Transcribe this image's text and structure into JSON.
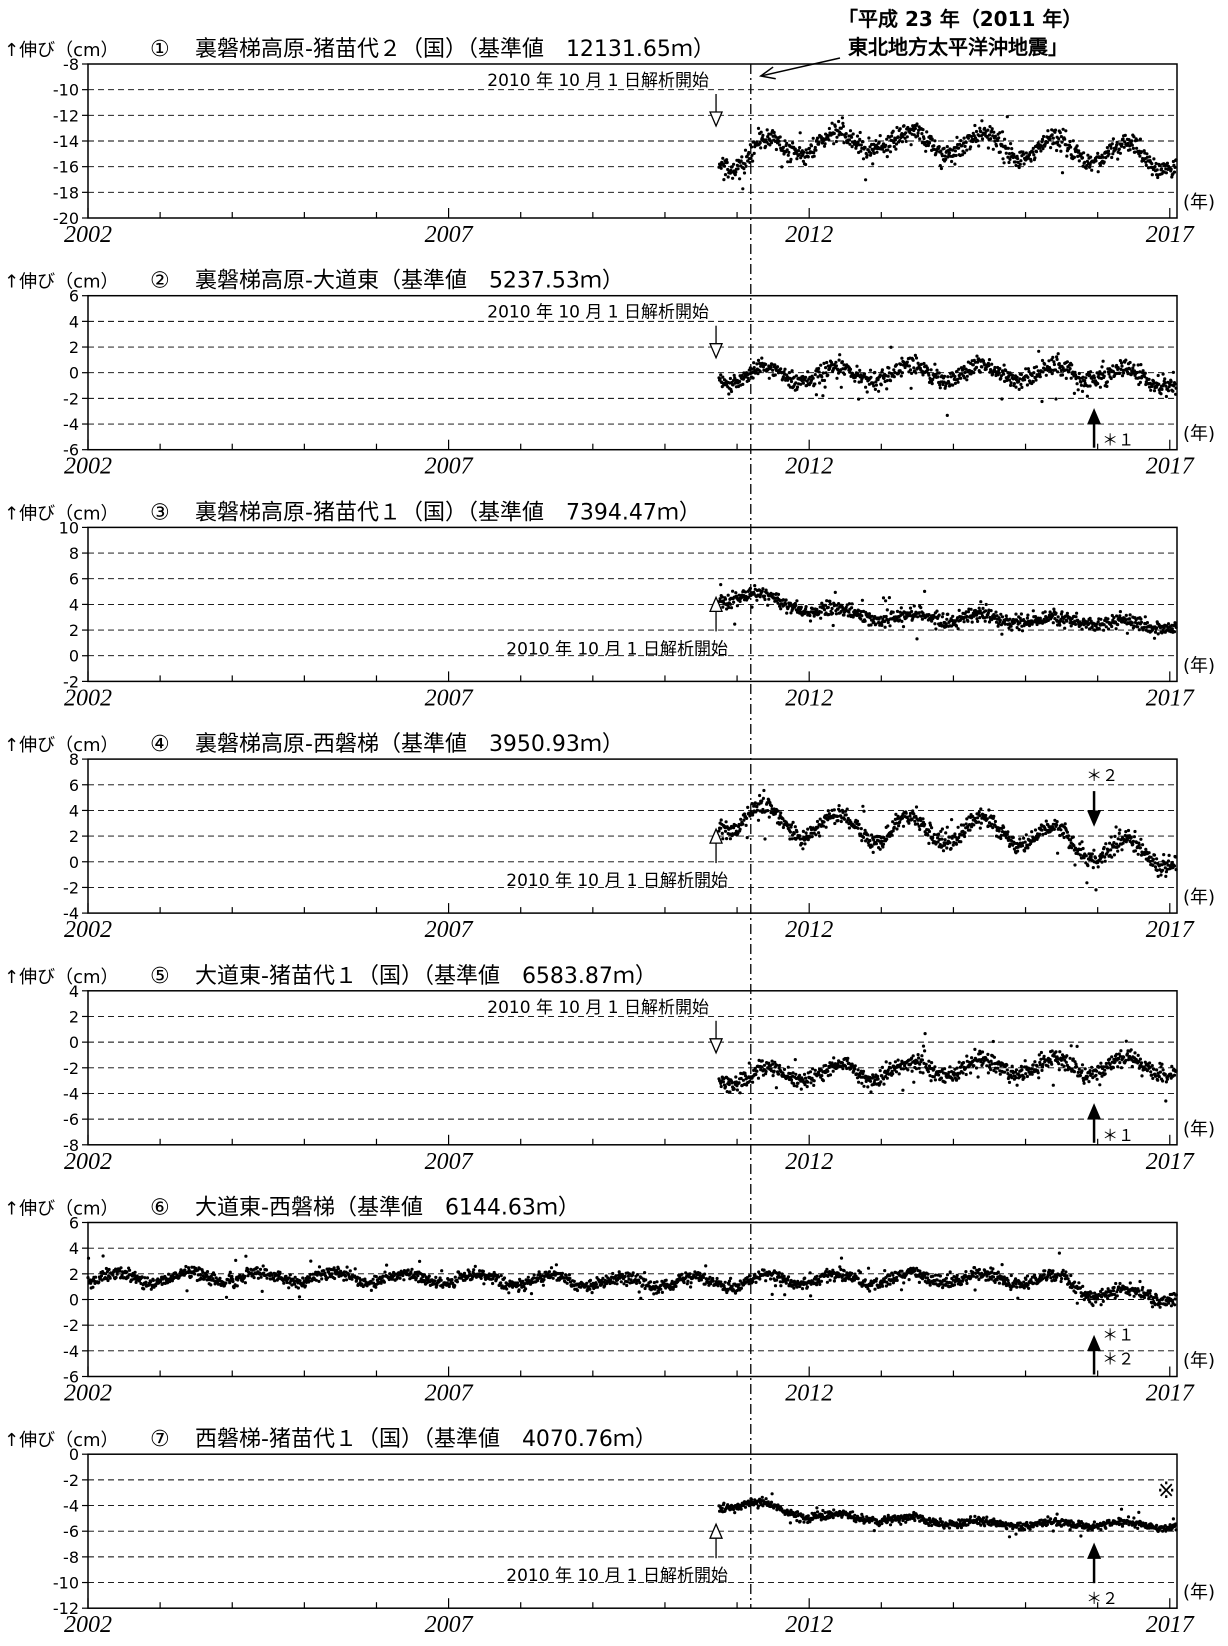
{
  "earthquake_label": {
    "line1": "「平成 23 年（2011 年）",
    "line2": "東北地方太平洋沖地震」",
    "year": 2011.19
  },
  "common": {
    "y_unit": "↑伸び（cm）",
    "x_unit": "(年)",
    "analysis_start_text": "2010 年 10 月 1 日解析開始",
    "analysis_start_year": 2010.75,
    "x_ticks": [
      "2002",
      "2007",
      "2012",
      "2017"
    ],
    "xlim": [
      2002,
      2017.1
    ]
  },
  "chart_data": [
    {
      "type": "scatter",
      "number": "①",
      "title": "裏磐梯高原-猪苗代２（国）（基準値　12131.65ｍ）",
      "ylim": [
        -20,
        -8
      ],
      "y_ticks": [
        "-8",
        "-10",
        "-12",
        "-14",
        "-16",
        "-18",
        "-20"
      ],
      "data_start": 2010.75,
      "levels": [
        [
          2010.75,
          -15.2
        ],
        [
          2011.1,
          -15.5
        ],
        [
          2011.3,
          -14.7
        ],
        [
          2012.0,
          -14.2
        ],
        [
          2013.0,
          -14.0
        ],
        [
          2014.0,
          -14.2
        ],
        [
          2015.0,
          -14.5
        ],
        [
          2016.0,
          -14.8
        ],
        [
          2017.1,
          -15.5
        ]
      ],
      "seasonal_amplitude": 0.9,
      "noise": 0.6,
      "analysis_arrow": {
        "dir": "down",
        "label_pos": "above"
      },
      "markers": []
    },
    {
      "type": "scatter",
      "number": "②",
      "title": "裏磐梯高原-大道東（基準値　5237.53ｍ）",
      "ylim": [
        -6,
        6
      ],
      "y_ticks": [
        "6",
        "4",
        "2",
        "0",
        "-2",
        "-4",
        "-6"
      ],
      "data_start": 2010.75,
      "levels": [
        [
          2010.75,
          -0.2
        ],
        [
          2012.0,
          -0.1
        ],
        [
          2014.0,
          0.0
        ],
        [
          2016.0,
          0.0
        ],
        [
          2017.1,
          -0.6
        ]
      ],
      "seasonal_amplitude": 0.6,
      "noise": 0.5,
      "analysis_arrow": {
        "dir": "down",
        "label_pos": "above"
      },
      "markers": [
        {
          "label": "＊１",
          "x": 2015.95,
          "dir": "up"
        }
      ]
    },
    {
      "type": "scatter",
      "number": "③",
      "title": "裏磐梯高原-猪苗代１（国）（基準値　7394.47ｍ）",
      "ylim": [
        -2,
        10
      ],
      "y_ticks": [
        "10",
        "8",
        "6",
        "4",
        "2",
        "0",
        "-2"
      ],
      "data_start": 2010.75,
      "levels": [
        [
          2010.75,
          4.4
        ],
        [
          2011.2,
          4.8
        ],
        [
          2012.0,
          3.6
        ],
        [
          2013.0,
          3.0
        ],
        [
          2014.0,
          3.0
        ],
        [
          2015.0,
          2.8
        ],
        [
          2016.0,
          2.6
        ],
        [
          2017.1,
          2.3
        ]
      ],
      "seasonal_amplitude": 0.3,
      "noise": 0.4,
      "analysis_arrow": {
        "dir": "up",
        "label_pos": "below"
      },
      "markers": []
    },
    {
      "type": "scatter",
      "number": "④",
      "title": "裏磐梯高原-西磐梯（基準値　3950.93ｍ）",
      "ylim": [
        -4,
        8
      ],
      "y_ticks": [
        "8",
        "6",
        "4",
        "2",
        "0",
        "-2",
        "-4"
      ],
      "data_start": 2010.75,
      "levels": [
        [
          2010.75,
          3.2
        ],
        [
          2011.2,
          3.6
        ],
        [
          2012.0,
          2.8
        ],
        [
          2013.0,
          2.5
        ],
        [
          2014.0,
          2.5
        ],
        [
          2015.0,
          2.2
        ],
        [
          2016.0,
          1.0
        ],
        [
          2017.1,
          0.4
        ]
      ],
      "seasonal_amplitude": 1.0,
      "noise": 0.5,
      "analysis_arrow": {
        "dir": "up",
        "label_pos": "below"
      },
      "markers": [
        {
          "label": "＊２",
          "x": 2015.95,
          "dir": "down"
        }
      ]
    },
    {
      "type": "scatter",
      "number": "⑤",
      "title": "大道東-猪苗代１（国）（基準値　6583.87ｍ）",
      "ylim": [
        -8,
        4
      ],
      "y_ticks": [
        "4",
        "2",
        "0",
        "-2",
        "-4",
        "-6",
        "-8"
      ],
      "data_start": 2010.75,
      "levels": [
        [
          2010.75,
          -2.7
        ],
        [
          2012.0,
          -2.4
        ],
        [
          2014.0,
          -2.0
        ],
        [
          2016.0,
          -1.9
        ],
        [
          2017.1,
          -2.0
        ]
      ],
      "seasonal_amplitude": 0.6,
      "noise": 0.5,
      "analysis_arrow": {
        "dir": "down",
        "label_pos": "above"
      },
      "markers": [
        {
          "label": "＊１",
          "x": 2015.95,
          "dir": "up"
        }
      ]
    },
    {
      "type": "scatter",
      "number": "⑥",
      "title": "大道東-西磐梯（基準値　6144.63ｍ）",
      "ylim": [
        -6,
        6
      ],
      "y_ticks": [
        "6",
        "4",
        "2",
        "0",
        "-2",
        "-4",
        "-6"
      ],
      "data_start": 2002.0,
      "levels": [
        [
          2002.0,
          1.6
        ],
        [
          2004.0,
          1.8
        ],
        [
          2007.0,
          1.6
        ],
        [
          2010.0,
          1.3
        ],
        [
          2012.0,
          1.6
        ],
        [
          2014.0,
          1.7
        ],
        [
          2015.5,
          1.5
        ],
        [
          2016.0,
          0.5
        ],
        [
          2017.1,
          0.3
        ]
      ],
      "seasonal_amplitude": 0.4,
      "noise": 0.35,
      "analysis_arrow": null,
      "markers": [
        {
          "label": "＊１",
          "x": 2015.95,
          "dir": "up"
        },
        {
          "label": "＊２",
          "x": 2015.95,
          "dir": "up2"
        }
      ]
    },
    {
      "type": "scatter",
      "number": "⑦",
      "title": "西磐梯-猪苗代１（国）（基準値　4070.76ｍ）",
      "ylim": [
        -12,
        0
      ],
      "y_ticks": [
        "0",
        "-2",
        "-4",
        "-6",
        "-8",
        "-10",
        "-12"
      ],
      "data_start": 2010.75,
      "levels": [
        [
          2010.75,
          -4.1
        ],
        [
          2011.2,
          -3.8
        ],
        [
          2012.0,
          -4.8
        ],
        [
          2013.0,
          -5.0
        ],
        [
          2014.0,
          -5.3
        ],
        [
          2015.0,
          -5.5
        ],
        [
          2016.0,
          -5.4
        ],
        [
          2017.1,
          -5.6
        ]
      ],
      "seasonal_amplitude": 0.2,
      "noise": 0.22,
      "analysis_arrow": {
        "dir": "up",
        "label_pos": "below"
      },
      "markers": [
        {
          "label": "＊２",
          "x": 2015.95,
          "dir": "up"
        }
      ],
      "note_mark": "※"
    }
  ]
}
